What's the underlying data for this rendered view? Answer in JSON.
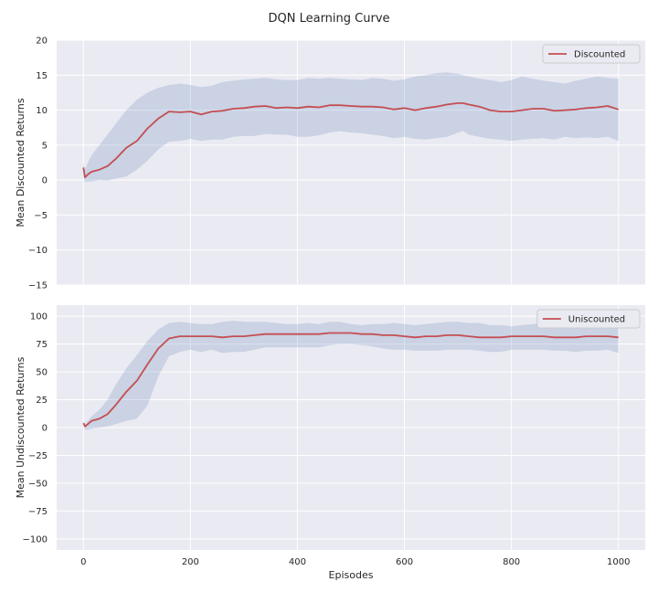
{
  "chart_data": {
    "title": "DQN Learning Curve",
    "xlabel": "Episodes",
    "x_ticks": [
      0,
      200,
      400,
      600,
      800,
      1000
    ],
    "xlim": [
      -50,
      1050
    ],
    "colors": {
      "line": "#c44e52",
      "band": "#4c72b0",
      "background": "#eaeaf2",
      "grid": "#ffffff"
    },
    "subplots": [
      {
        "type": "line",
        "ylabel": "Mean Discounted Returns",
        "ylim": [
          -15,
          20
        ],
        "y_ticks": [
          -15,
          -10,
          -5,
          0,
          5,
          10,
          15,
          20
        ],
        "legend": {
          "label": "Discounted",
          "position": "top-right"
        },
        "x": [
          0,
          3,
          8,
          15,
          30,
          45,
          60,
          80,
          100,
          120,
          140,
          160,
          180,
          200,
          220,
          240,
          260,
          280,
          300,
          320,
          340,
          360,
          380,
          400,
          420,
          440,
          460,
          480,
          500,
          520,
          540,
          560,
          580,
          600,
          620,
          640,
          660,
          680,
          700,
          710,
          720,
          740,
          760,
          780,
          800,
          820,
          840,
          860,
          880,
          900,
          920,
          940,
          960,
          980,
          1000
        ],
        "mean": [
          1.8,
          0.4,
          0.8,
          1.2,
          1.5,
          2.0,
          3.0,
          4.6,
          5.6,
          7.4,
          8.8,
          9.8,
          9.7,
          9.8,
          9.4,
          9.8,
          9.9,
          10.2,
          10.3,
          10.5,
          10.6,
          10.3,
          10.4,
          10.3,
          10.5,
          10.4,
          10.7,
          10.7,
          10.6,
          10.5,
          10.5,
          10.4,
          10.1,
          10.3,
          10.0,
          10.3,
          10.5,
          10.8,
          11.0,
          11.0,
          10.8,
          10.5,
          10.0,
          9.8,
          9.8,
          10.0,
          10.2,
          10.2,
          9.9,
          10.0,
          10.1,
          10.3,
          10.4,
          10.6,
          10.1
        ],
        "upper": [
          2.5,
          1.5,
          2.5,
          3.5,
          5.0,
          6.5,
          8.0,
          10.0,
          11.5,
          12.5,
          13.2,
          13.6,
          13.8,
          13.6,
          13.3,
          13.5,
          14.0,
          14.2,
          14.4,
          14.5,
          14.6,
          14.4,
          14.3,
          14.3,
          14.6,
          14.5,
          14.6,
          14.5,
          14.4,
          14.3,
          14.6,
          14.5,
          14.2,
          14.4,
          14.8,
          15.0,
          15.3,
          15.4,
          15.2,
          15.0,
          14.8,
          14.5,
          14.3,
          14.0,
          14.3,
          14.8,
          14.5,
          14.2,
          14.0,
          13.8,
          14.2,
          14.5,
          14.8,
          14.6,
          14.5
        ],
        "lower": [
          0.5,
          -0.3,
          -0.2,
          -0.2,
          0.0,
          -0.1,
          0.2,
          0.5,
          1.5,
          2.8,
          4.4,
          5.5,
          5.6,
          5.9,
          5.6,
          5.8,
          5.8,
          6.2,
          6.3,
          6.3,
          6.6,
          6.5,
          6.5,
          6.2,
          6.2,
          6.4,
          6.8,
          7.0,
          6.8,
          6.7,
          6.5,
          6.3,
          6.0,
          6.2,
          5.9,
          5.8,
          6.0,
          6.2,
          6.8,
          7.0,
          6.5,
          6.2,
          5.9,
          5.8,
          5.6,
          5.8,
          5.9,
          6.0,
          5.8,
          6.2,
          6.0,
          6.1,
          6.0,
          6.2,
          5.6
        ]
      },
      {
        "type": "line",
        "ylabel": "Mean Undiscounted Returns",
        "ylim": [
          -110,
          110
        ],
        "y_ticks": [
          -100,
          -75,
          -50,
          -25,
          0,
          25,
          50,
          75,
          100
        ],
        "legend": {
          "label": "Uniscounted",
          "position": "top-right"
        },
        "x": [
          0,
          3,
          8,
          15,
          30,
          45,
          60,
          80,
          100,
          120,
          140,
          160,
          180,
          200,
          220,
          240,
          260,
          280,
          300,
          320,
          340,
          360,
          380,
          400,
          420,
          440,
          460,
          480,
          500,
          520,
          540,
          560,
          580,
          600,
          620,
          640,
          660,
          680,
          700,
          720,
          740,
          760,
          780,
          800,
          820,
          840,
          860,
          880,
          900,
          920,
          940,
          960,
          980,
          1000
        ],
        "mean": [
          4,
          1,
          3,
          6,
          8,
          12,
          20,
          32,
          42,
          57,
          71,
          80,
          82,
          82,
          82,
          82,
          81,
          82,
          82,
          83,
          84,
          84,
          84,
          84,
          84,
          84,
          85,
          85,
          85,
          84,
          84,
          83,
          83,
          82,
          81,
          82,
          82,
          83,
          83,
          82,
          81,
          81,
          81,
          82,
          82,
          82,
          82,
          81,
          81,
          81,
          82,
          82,
          82,
          81
        ],
        "upper": [
          5,
          3,
          6,
          10,
          16,
          25,
          38,
          53,
          65,
          78,
          88,
          94,
          95,
          94,
          93,
          93,
          95,
          96,
          95,
          95,
          95,
          94,
          93,
          93,
          94,
          93,
          95,
          95,
          93,
          92,
          93,
          93,
          94,
          93,
          92,
          93,
          94,
          95,
          95,
          94,
          94,
          92,
          92,
          91,
          92,
          93,
          94,
          94,
          94,
          94,
          95,
          95,
          94,
          92
        ],
        "lower": [
          3,
          -2,
          -2,
          -1,
          0,
          1,
          3,
          6,
          8,
          20,
          46,
          64,
          68,
          70,
          68,
          70,
          67,
          68,
          68,
          70,
          72,
          72,
          72,
          72,
          72,
          72,
          74,
          75,
          75,
          74,
          73,
          71,
          70,
          70,
          69,
          69,
          69,
          70,
          70,
          70,
          69,
          68,
          68,
          70,
          70,
          70,
          70,
          69,
          69,
          68,
          69,
          69,
          70,
          67
        ]
      }
    ]
  }
}
